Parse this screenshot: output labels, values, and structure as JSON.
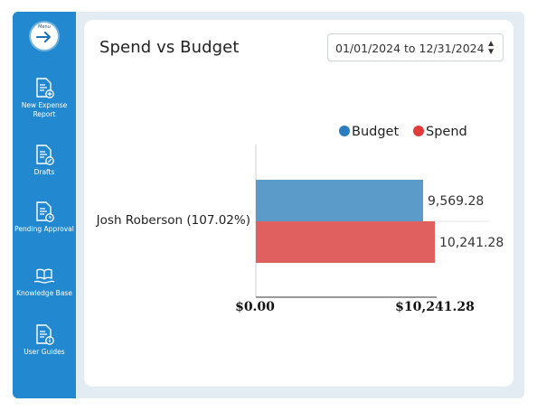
{
  "sidebar": {
    "menu_label": "Menu",
    "items": [
      {
        "label": "New Expense Report",
        "icon": "new-expense-report-icon"
      },
      {
        "label": "Drafts",
        "icon": "drafts-icon"
      },
      {
        "label": "Pending Approval",
        "icon": "pending-approval-icon"
      },
      {
        "label": "Knowledge Base",
        "icon": "knowledge-base-icon"
      },
      {
        "label": "User Guides",
        "icon": "user-guides-icon"
      }
    ]
  },
  "card": {
    "title": "Spend vs Budget",
    "date_range": "01/01/2024 to 12/31/2024"
  },
  "colors": {
    "sidebar": "#2289d0",
    "budget": "#5b9bca",
    "spend": "#e06060",
    "budget_legend": "#2a7dc0",
    "spend_legend": "#e03c3c"
  },
  "chart_data": {
    "type": "bar",
    "orientation": "horizontal",
    "categories": [
      "Josh Roberson (107.02%)"
    ],
    "series": [
      {
        "name": "Budget",
        "values": [
          9569.28
        ],
        "value_labels": [
          "9,569.28"
        ]
      },
      {
        "name": "Spend",
        "values": [
          10241.28
        ],
        "value_labels": [
          "10,241.28"
        ]
      }
    ],
    "xlim": [
      0,
      10241.28
    ],
    "xticks": [
      "$0.00",
      "$10,241.28"
    ],
    "legend_position": "top-right",
    "grid": false
  }
}
